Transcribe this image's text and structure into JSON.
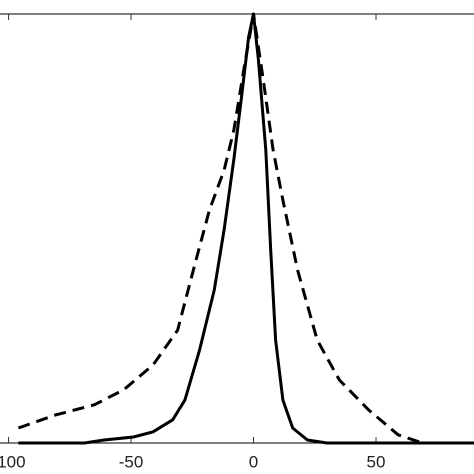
{
  "chart_data": {
    "type": "line",
    "xlim": [
      -103.5,
      90
    ],
    "ylim": [
      0,
      1
    ],
    "xticks": [
      -100,
      -50,
      0,
      50
    ],
    "series": [
      {
        "color": "#000000",
        "dash": false,
        "x": [
          -96,
          -69,
          -61,
          -49,
          -41,
          -33,
          -28,
          -22,
          -16,
          -12,
          -8,
          -5,
          -2,
          0,
          2,
          5,
          7,
          9,
          12,
          16,
          22,
          30,
          90
        ],
        "values": [
          0,
          0,
          0.007,
          0.014,
          0.026,
          0.054,
          0.1,
          0.217,
          0.357,
          0.497,
          0.662,
          0.802,
          0.946,
          1,
          0.893,
          0.683,
          0.45,
          0.24,
          0.1,
          0.035,
          0.007,
          0,
          0
        ]
      },
      {
        "color": "#000000",
        "dash": true,
        "x": [
          -96,
          -81,
          -65,
          -53,
          -41,
          -31,
          -24,
          -18,
          -12,
          -8,
          -4,
          0,
          4,
          8,
          12,
          18,
          26,
          35,
          47,
          59,
          69,
          90
        ],
        "values": [
          0.035,
          0.065,
          0.089,
          0.124,
          0.182,
          0.263,
          0.415,
          0.543,
          0.636,
          0.73,
          0.869,
          1,
          0.846,
          0.683,
          0.566,
          0.403,
          0.24,
          0.147,
          0.077,
          0.019,
          0,
          0
        ]
      }
    ]
  }
}
